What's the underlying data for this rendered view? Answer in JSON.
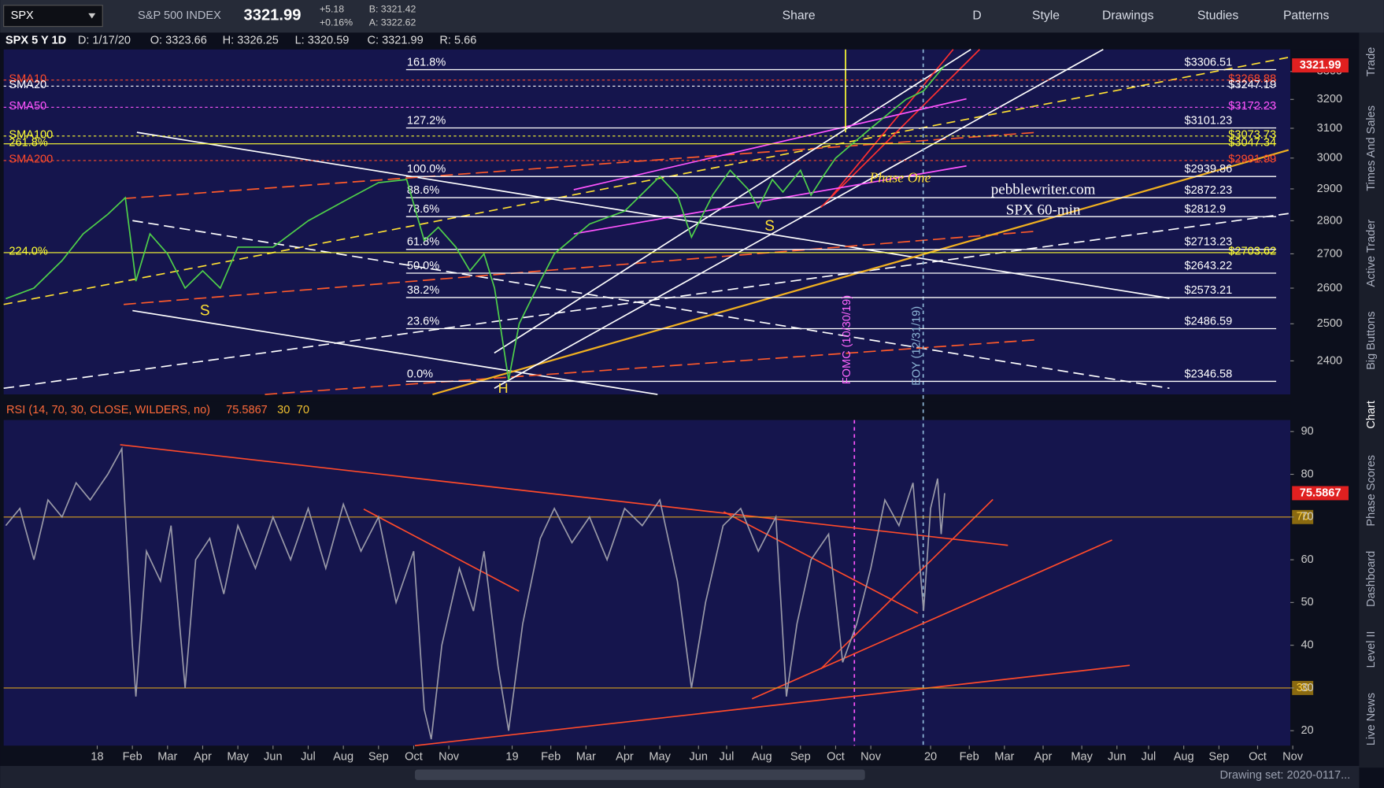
{
  "toolbar": {
    "symbol": "SPX",
    "name": "S&P 500 INDEX",
    "last": "3321.99",
    "change": "+5.18",
    "change_pct": "+0.16%",
    "bid": "B: 3321.42",
    "ask": "A: 3322.62",
    "buttons": [
      "Share",
      "D",
      "Style",
      "Drawings",
      "Studies",
      "Patterns"
    ]
  },
  "header": [
    "SPX 5 Y 1D",
    "D: 1/17/20",
    "O: 3323.66",
    "H: 3326.25",
    "L: 3320.59",
    "C: 3321.99",
    "R: 5.66"
  ],
  "chart_data": [
    {
      "type": "line",
      "name": "SPX",
      "ylim": [
        2313,
        3381
      ],
      "log_scale": true,
      "xlim": [
        -2.66,
        33.93
      ],
      "yticks": [
        2400,
        2500,
        2600,
        2700,
        2800,
        2900,
        3000,
        3100,
        3200,
        3300
      ],
      "x": [
        -2.6,
        -1.8,
        -1,
        -0.4,
        0.3,
        0.8,
        1.1,
        1.5,
        2,
        2.5,
        3,
        3.5,
        4,
        5,
        6,
        7,
        8,
        8.8,
        9.3,
        9.7,
        10.2,
        10.6,
        11,
        11.3,
        11.7,
        12,
        12.5,
        13,
        14,
        15,
        16,
        16.5,
        16.9,
        17.5,
        18,
        18.5,
        18.8,
        19.2,
        19.5,
        20,
        20.3,
        20.7,
        21,
        21.5,
        22,
        22.5,
        23,
        23.5,
        24.1
      ],
      "values": [
        2570,
        2600,
        2680,
        2760,
        2820,
        2872,
        2620,
        2760,
        2700,
        2600,
        2650,
        2600,
        2720,
        2720,
        2800,
        2860,
        2920,
        2930,
        2740,
        2780,
        2720,
        2650,
        2700,
        2600,
        2350,
        2500,
        2600,
        2700,
        2790,
        2830,
        2940,
        2880,
        2750,
        2880,
        2960,
        2900,
        2840,
        2930,
        2890,
        2960,
        2880,
        2950,
        3000,
        3050,
        3100,
        3150,
        3200,
        3230,
        3321.99
      ],
      "color": "#4fd14a",
      "last_label": "3321.99",
      "levels": [
        {
          "value": 3306.51,
          "pct": "161.8%",
          "label": "$3306.51"
        },
        {
          "value": 3101.23,
          "pct": "127.2%",
          "label": "$3101.23"
        },
        {
          "value": 2939.86,
          "pct": "100.0%",
          "label": "$2939.86"
        },
        {
          "value": 2872.23,
          "pct": "88.6%",
          "label": "$2872.23"
        },
        {
          "value": 2812.9,
          "pct": "78.6%",
          "label": "$2812.9"
        },
        {
          "value": 2713.23,
          "pct": "61.8%",
          "label": "$2713.23"
        },
        {
          "value": 2643.22,
          "pct": "50.0%",
          "label": "$2643.22"
        },
        {
          "value": 2573.21,
          "pct": "38.2%",
          "label": "$2573.21"
        },
        {
          "value": 2486.59,
          "pct": "23.6%",
          "label": "$2486.59"
        },
        {
          "value": 2346.58,
          "pct": "0.0%",
          "label": "$2346.58"
        }
      ],
      "studies": [
        {
          "name": "SMA10",
          "color": "#ff4a2a",
          "value": 3268.88,
          "label": "$3268.88"
        },
        {
          "name": "SMA20",
          "color": "#ffffff",
          "value": 3247.19,
          "label": "$3247.19"
        },
        {
          "name": "SMA50",
          "color": "#ff55ff",
          "value": 3172.23,
          "label": "$3172.23"
        },
        {
          "name": "SMA100",
          "color": "#ffff33",
          "value": 3073.73,
          "label": "$3073.73"
        },
        {
          "name": "261.8%",
          "color": "#ffff33",
          "value": 3047.34,
          "label": "$3047.34"
        },
        {
          "name": "SMA200",
          "color": "#ff4a2a",
          "value": 2991.99,
          "label": "$2991.99"
        },
        {
          "name": "224.0%",
          "color": "#ffff33",
          "value": 2703.62,
          "label": "$2703.62"
        }
      ],
      "annotations": [
        "Phase One",
        "pebblewriter.com",
        "SPX 60-min",
        "S",
        "S",
        "H",
        "FOMC (10/30/19)",
        "EOY (12/31/19)"
      ]
    },
    {
      "type": "line",
      "name": "RSI (14, 70, 30, CLOSE, WILDERS, no)",
      "ylim": [
        16.5,
        92.7
      ],
      "xlim": [
        -2.66,
        33.93
      ],
      "yticks": [
        20,
        30,
        40,
        50,
        60,
        70,
        80,
        90
      ],
      "last": "75.5867",
      "bands": [
        "30",
        "70"
      ],
      "x": [
        -2.6,
        -2.2,
        -1.8,
        -1.4,
        -1,
        -0.6,
        -0.2,
        0.3,
        0.7,
        1.0,
        1.1,
        1.4,
        1.8,
        2.1,
        2.5,
        2.8,
        3.2,
        3.6,
        4,
        4.5,
        5,
        5.5,
        6,
        6.5,
        7,
        7.5,
        8,
        8.5,
        9,
        9.3,
        9.5,
        9.8,
        10.3,
        10.7,
        11,
        11.4,
        11.7,
        12.1,
        12.6,
        13,
        13.5,
        14,
        14.5,
        15,
        15.5,
        16,
        16.5,
        16.9,
        17.3,
        17.8,
        18.3,
        18.8,
        19.3,
        19.6,
        19.9,
        20.3,
        20.8,
        21.2,
        21.6,
        22,
        22.4,
        22.8,
        23.2,
        23.5,
        23.7,
        23.9,
        24.0,
        24.1
      ],
      "values": [
        68,
        72,
        60,
        74,
        70,
        78,
        74,
        80,
        86,
        40,
        28,
        62,
        55,
        68,
        30,
        60,
        65,
        52,
        68,
        58,
        70,
        60,
        72,
        58,
        73,
        62,
        70,
        50,
        62,
        25,
        18,
        40,
        58,
        48,
        62,
        35,
        20,
        45,
        65,
        72,
        64,
        70,
        60,
        72,
        68,
        74,
        55,
        30,
        50,
        68,
        72,
        62,
        70,
        28,
        45,
        60,
        66,
        36,
        45,
        58,
        74,
        68,
        78,
        48,
        72,
        79,
        66,
        75.5867
      ],
      "color": "#9a9aa8"
    }
  ],
  "x_axis": [
    {
      "value": 0,
      "label": "18"
    },
    {
      "value": 1,
      "label": "Feb"
    },
    {
      "value": 2,
      "label": "Mar"
    },
    {
      "value": 3,
      "label": "Apr"
    },
    {
      "value": 4,
      "label": "May"
    },
    {
      "value": 5,
      "label": "Jun"
    },
    {
      "value": 6,
      "label": "Jul"
    },
    {
      "value": 7,
      "label": "Aug"
    },
    {
      "value": 8,
      "label": "Sep"
    },
    {
      "value": 9,
      "label": "Oct"
    },
    {
      "value": 10,
      "label": "Nov"
    },
    {
      "value": 11.8,
      "label": "19"
    },
    {
      "value": 12.9,
      "label": "Feb"
    },
    {
      "value": 13.9,
      "label": "Mar"
    },
    {
      "value": 15,
      "label": "Apr"
    },
    {
      "value": 16,
      "label": "May"
    },
    {
      "value": 17.1,
      "label": "Jun"
    },
    {
      "value": 17.9,
      "label": "Jul"
    },
    {
      "value": 18.9,
      "label": "Aug"
    },
    {
      "value": 20,
      "label": "Sep"
    },
    {
      "value": 21,
      "label": "Oct"
    },
    {
      "value": 22,
      "label": "Nov"
    },
    {
      "value": 23.7,
      "label": "20"
    },
    {
      "value": 24.8,
      "label": "Feb"
    },
    {
      "value": 25.8,
      "label": "Mar"
    },
    {
      "value": 26.9,
      "label": "Apr"
    },
    {
      "value": 28,
      "label": "May"
    },
    {
      "value": 29,
      "label": "Jun"
    },
    {
      "value": 29.9,
      "label": "Jul"
    },
    {
      "value": 30.9,
      "label": "Aug"
    },
    {
      "value": 31.9,
      "label": "Sep"
    },
    {
      "value": 33,
      "label": "Oct"
    },
    {
      "value": 34,
      "label": "Nov"
    }
  ],
  "side_tabs": [
    "Trade",
    "Times And Sales",
    "Active Trader",
    "Big Buttons",
    "Chart",
    "Phase Scores",
    "Dashboard",
    "Level II",
    "Live News"
  ],
  "status": "Drawing set: 2020-0117..."
}
